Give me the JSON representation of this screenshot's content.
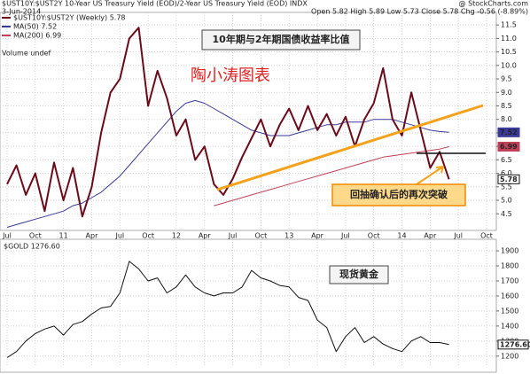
{
  "chart_data": [
    {
      "type": "line",
      "title": "$UST10Y:$UST2Y 10-Year US Treasury Yield (EOD)/2-Year US Treasury Yield (EOD) INDX",
      "source": "@ StockCharts.com",
      "date": "3-Jun-2014",
      "ohlc_summary": "Open 5.82 High 5.89 Low 5.73 Close 5.78 Chg -0.56 (-8.89%)",
      "volume_note": "Volume undef",
      "annotations": [
        "10年期与2年期国债收益率比值",
        "陶小涛图表",
        "回抽确认后的再次突破"
      ],
      "categories": [
        "Jul",
        null,
        null,
        "Oct",
        null,
        null,
        "11",
        null,
        null,
        "Apr",
        null,
        null,
        "Jul",
        null,
        null,
        "Oct",
        null,
        null,
        "12",
        null,
        null,
        "Apr",
        null,
        null,
        "Jul",
        null,
        null,
        "Oct",
        null,
        null,
        "13",
        null,
        null,
        "Apr",
        null,
        null,
        "Jul",
        null,
        null,
        "Oct",
        null,
        null,
        "14",
        null,
        null,
        "Apr",
        null,
        null,
        "Jul",
        null,
        null,
        "Oct"
      ],
      "series": [
        {
          "name": "$UST10Y:$UST2Y (Weekly) 5.78",
          "color": "#6d0a1a",
          "values": [
            5.6,
            6.3,
            5.2,
            6.0,
            4.6,
            6.4,
            5.0,
            6.2,
            4.4,
            5.5,
            7.5,
            9.0,
            9.5,
            11.0,
            11.4,
            8.5,
            9.8,
            8.8,
            7.4,
            8.0,
            6.5,
            7.0,
            5.6,
            5.2,
            5.8,
            6.6,
            7.3,
            8.0,
            7.0,
            7.8,
            8.4,
            7.6,
            8.5,
            7.6,
            8.2,
            7.4,
            8.1,
            7.0,
            8.0,
            8.6,
            9.9,
            8.0,
            7.4,
            9.0,
            7.6,
            6.2,
            6.8,
            5.78,
            null,
            null,
            null,
            null
          ]
        },
        {
          "name": "MA(50) 7.52",
          "color": "#3a3a9a",
          "values": [
            4.0,
            4.1,
            4.2,
            4.3,
            4.4,
            4.5,
            4.6,
            4.8,
            4.9,
            5.1,
            5.3,
            5.6,
            5.9,
            6.3,
            6.7,
            7.1,
            7.5,
            7.9,
            8.3,
            8.6,
            8.7,
            8.6,
            8.4,
            8.2,
            8.0,
            7.8,
            7.6,
            7.5,
            7.4,
            7.4,
            7.4,
            7.5,
            7.6,
            7.7,
            7.8,
            7.8,
            7.9,
            7.9,
            7.9,
            8.0,
            8.0,
            8.0,
            7.9,
            7.8,
            7.7,
            7.6,
            7.55,
            7.52,
            null,
            null,
            null,
            null
          ]
        },
        {
          "name": "MA(200) 6.99",
          "color": "#c0405a",
          "values": [
            null,
            null,
            null,
            null,
            null,
            null,
            null,
            null,
            null,
            null,
            null,
            null,
            null,
            null,
            null,
            null,
            null,
            null,
            null,
            null,
            null,
            null,
            4.8,
            4.9,
            5.0,
            5.1,
            5.2,
            5.3,
            5.4,
            5.5,
            5.6,
            5.7,
            5.8,
            5.9,
            6.0,
            6.1,
            6.2,
            6.3,
            6.4,
            6.5,
            6.6,
            6.65,
            6.7,
            6.75,
            6.8,
            6.85,
            6.9,
            6.99,
            null,
            null,
            null,
            null
          ]
        }
      ],
      "ylim": [
        3.95,
        11.9
      ],
      "yticks": [
        4.5,
        {
          "value": 5,
          "label": "5.0"
        },
        5.5,
        {
          "value": 6,
          "label": "6.0"
        },
        6.5,
        {
          "value": 7,
          "label": "7.0"
        },
        7.5,
        {
          "value": 8,
          "label": "8.0"
        },
        8.5,
        {
          "value": 9,
          "label": "9.0"
        },
        9.5,
        {
          "value": 10,
          "label": "10.0"
        },
        10.5,
        {
          "value": 11,
          "label": "11.0"
        },
        11.5
      ],
      "grid": true
    },
    {
      "type": "line",
      "title": "$GOLD 1276.60",
      "annotations": [
        "现货黄金"
      ],
      "color": "#111111",
      "values": [
        1190,
        1230,
        1300,
        1350,
        1380,
        1400,
        1340,
        1410,
        1430,
        1480,
        1520,
        1530,
        1620,
        1830,
        1780,
        1700,
        1720,
        1620,
        1660,
        1740,
        1660,
        1620,
        1600,
        1620,
        1620,
        1660,
        1770,
        1720,
        1700,
        1670,
        1660,
        1590,
        1570,
        1440,
        1390,
        1230,
        1330,
        1390,
        1290,
        1330,
        1280,
        1250,
        1230,
        1300,
        1330,
        1290,
        1290,
        1276.6,
        null,
        null,
        null,
        null
      ],
      "value_labels": [
        null,
        null,
        null,
        null,
        null,
        null,
        null,
        null,
        null,
        null,
        null,
        null,
        null,
        null,
        null,
        null,
        null,
        null,
        null,
        null,
        null,
        null,
        null,
        null,
        null,
        null,
        null,
        null,
        null,
        null,
        null,
        null,
        null,
        null,
        null,
        null,
        null,
        null,
        null,
        null,
        null,
        null,
        null,
        null,
        null,
        null,
        null,
        "1276.60",
        null,
        null,
        null,
        null
      ],
      "ylim": [
        1140,
        1965
      ],
      "yticks": [
        1200,
        1300,
        1400,
        1500,
        1600,
        1700,
        1800,
        1900
      ],
      "grid": true
    }
  ]
}
